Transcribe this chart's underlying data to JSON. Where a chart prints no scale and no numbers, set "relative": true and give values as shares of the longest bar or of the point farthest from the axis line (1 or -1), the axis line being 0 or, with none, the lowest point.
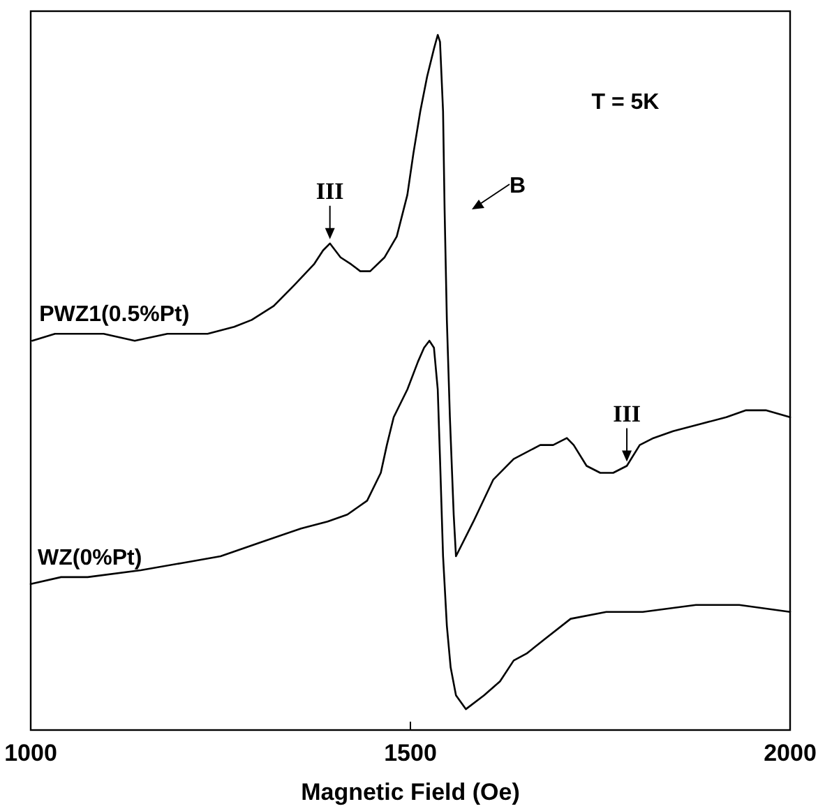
{
  "chart_data": {
    "type": "line",
    "relative": true,
    "xlabel": "Magnetic Field (Oe)",
    "xlim": [
      1000,
      2000
    ],
    "xticks": [
      1000,
      1500,
      2000
    ],
    "grid": false,
    "marker": "none",
    "line_style": "solid",
    "series": [
      {
        "name": "PWZ1(0.5%Pt)",
        "color": "#000000",
        "x": [
          1002,
          1032,
          1058,
          1096,
          1137,
          1180,
          1233,
          1268,
          1291,
          1320,
          1347,
          1373,
          1385,
          1394,
          1408,
          1422,
          1434,
          1447,
          1466,
          1482,
          1496,
          1504,
          1513,
          1522,
          1531,
          1536,
          1539,
          1543,
          1545,
          1548,
          1552,
          1557,
          1560,
          1583,
          1609,
          1636,
          1671,
          1688,
          1706,
          1715,
          1732,
          1750,
          1767,
          1785,
          1802,
          1820,
          1846,
          1881,
          1916,
          1942,
          1968,
          2000
        ],
        "values": [
          0.56,
          0.57,
          0.57,
          0.57,
          0.56,
          0.57,
          0.57,
          0.58,
          0.59,
          0.61,
          0.64,
          0.67,
          0.69,
          0.7,
          0.68,
          0.67,
          0.66,
          0.66,
          0.68,
          0.71,
          0.77,
          0.83,
          0.89,
          0.94,
          0.98,
          1,
          0.99,
          0.89,
          0.75,
          0.59,
          0.45,
          0.31,
          0.25,
          0.3,
          0.36,
          0.39,
          0.41,
          0.41,
          0.42,
          0.41,
          0.38,
          0.37,
          0.37,
          0.38,
          0.41,
          0.42,
          0.43,
          0.44,
          0.45,
          0.46,
          0.46,
          0.45
        ]
      },
      {
        "name": "WZ(0%Pt)",
        "color": "#000000",
        "x": [
          1000,
          1040,
          1075,
          1145,
          1198,
          1250,
          1303,
          1356,
          1391,
          1417,
          1443,
          1461,
          1469,
          1478,
          1496,
          1510,
          1518,
          1525,
          1531,
          1536,
          1539,
          1543,
          1548,
          1553,
          1560,
          1573,
          1597,
          1618,
          1636,
          1653,
          1676,
          1711,
          1758,
          1806,
          1876,
          1933,
          2000
        ],
        "values": [
          0.21,
          0.22,
          0.22,
          0.23,
          0.24,
          0.25,
          0.27,
          0.29,
          0.3,
          0.31,
          0.33,
          0.37,
          0.41,
          0.45,
          0.49,
          0.53,
          0.55,
          0.56,
          0.55,
          0.49,
          0.39,
          0.25,
          0.15,
          0.09,
          0.05,
          0.03,
          0.05,
          0.07,
          0.1,
          0.11,
          0.13,
          0.16,
          0.17,
          0.17,
          0.18,
          0.18,
          0.17
        ]
      }
    ],
    "annotations": [
      "T = 5K",
      "B",
      {
        "text": "III",
        "x": 1394,
        "y": 0.7
      },
      {
        "text": "III",
        "x": 1785,
        "y": 0.38
      }
    ]
  }
}
